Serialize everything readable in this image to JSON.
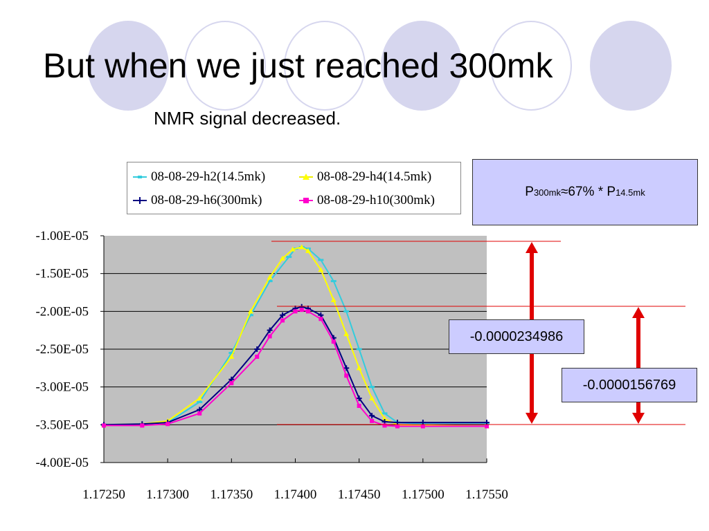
{
  "slide": {
    "title": "But when we just reached 300mk",
    "subtitle": "NMR signal decreased."
  },
  "annotations": {
    "formula": {
      "p": "P",
      "sub1": "300mk",
      "mid": "≈67% * P",
      "sub2": "14.5mk"
    },
    "delta_14_5mk": "-0.0000234986",
    "delta_300mk": "-0.0000156769"
  },
  "colors": {
    "decor_circle": "#d6d6ee",
    "plot_bg": "#c0c0c0",
    "box_fill": "#ccccff",
    "arrow": "#e00000",
    "ref_line": "#e00000"
  },
  "chart_data": {
    "type": "line",
    "title": "",
    "xlabel": "",
    "ylabel": "",
    "xlim": [
      1.1725,
      1.1755
    ],
    "ylim": [
      -4e-05,
      -1e-05
    ],
    "x_ticks": [
      "1.17250",
      "1.17300",
      "1.17350",
      "1.17400",
      "1.17450",
      "1.17500",
      "1.17550"
    ],
    "y_ticks": [
      "-1.00E-05",
      "-1.50E-05",
      "-2.00E-05",
      "-2.50E-05",
      "-3.00E-05",
      "-3.50E-05",
      "-4.00E-05"
    ],
    "grid": "horizontal",
    "legend_position": "top",
    "series": [
      {
        "name": "08-08-29-h2(14.5mk)",
        "color": "#33ccdd",
        "marker": "dash",
        "x": [
          1.1725,
          1.1728,
          1.173,
          1.17325,
          1.1735,
          1.17365,
          1.1738,
          1.17395,
          1.174,
          1.17405,
          1.1741,
          1.1742,
          1.1743,
          1.1744,
          1.1745,
          1.1746,
          1.1747,
          1.1748,
          1.175,
          1.1755
        ],
        "y": [
          -3.5e-05,
          -3.49e-05,
          -3.47e-05,
          -3.2e-05,
          -2.55e-05,
          -2.05e-05,
          -1.6e-05,
          -1.28e-05,
          -1.17e-05,
          -1.15e-05,
          -1.17e-05,
          -1.32e-05,
          -1.6e-05,
          -2e-05,
          -2.5e-05,
          -3e-05,
          -3.35e-05,
          -3.47e-05,
          -3.49e-05,
          -3.49e-05
        ]
      },
      {
        "name": "08-08-29-h4(14.5mk)",
        "color": "#ffff00",
        "marker": "triangle",
        "x": [
          1.1725,
          1.1728,
          1.173,
          1.17325,
          1.1735,
          1.17365,
          1.1738,
          1.1739,
          1.17398,
          1.17405,
          1.1741,
          1.1742,
          1.1743,
          1.1744,
          1.1745,
          1.1746,
          1.1747,
          1.1748,
          1.175,
          1.1755
        ],
        "y": [
          -3.5e-05,
          -3.49e-05,
          -3.45e-05,
          -3.15e-05,
          -2.6e-05,
          -2e-05,
          -1.55e-05,
          -1.3e-05,
          -1.18e-05,
          -1.15e-05,
          -1.2e-05,
          -1.45e-05,
          -1.85e-05,
          -2.3e-05,
          -2.75e-05,
          -3.15e-05,
          -3.42e-05,
          -3.5e-05,
          -3.51e-05,
          -3.52e-05
        ]
      },
      {
        "name": "08-08-29-h6(300mk)",
        "color": "#000080",
        "marker": "plus",
        "x": [
          1.1725,
          1.1728,
          1.173,
          1.17325,
          1.1735,
          1.1737,
          1.1738,
          1.1739,
          1.174,
          1.17405,
          1.1741,
          1.1742,
          1.1743,
          1.1744,
          1.1745,
          1.1746,
          1.1747,
          1.1748,
          1.175,
          1.1755
        ],
        "y": [
          -3.5e-05,
          -3.49e-05,
          -3.47e-05,
          -3.3e-05,
          -2.9e-05,
          -2.5e-05,
          -2.25e-05,
          -2.05e-05,
          -1.96e-05,
          -1.94e-05,
          -1.96e-05,
          -2.05e-05,
          -2.35e-05,
          -2.75e-05,
          -3.15e-05,
          -3.38e-05,
          -3.46e-05,
          -3.47e-05,
          -3.47e-05,
          -3.47e-05
        ]
      },
      {
        "name": "08-08-29-h10(300mk)",
        "color": "#ff00cc",
        "marker": "square",
        "x": [
          1.1725,
          1.1728,
          1.173,
          1.17325,
          1.1735,
          1.1737,
          1.1738,
          1.1739,
          1.174,
          1.17405,
          1.1741,
          1.1742,
          1.1743,
          1.1744,
          1.1745,
          1.1746,
          1.1747,
          1.1748,
          1.175,
          1.1755
        ],
        "y": [
          -3.51e-05,
          -3.51e-05,
          -3.49e-05,
          -3.35e-05,
          -2.95e-05,
          -2.6e-05,
          -2.33e-05,
          -2.12e-05,
          -2e-05,
          -1.98e-05,
          -2e-05,
          -2.1e-05,
          -2.4e-05,
          -2.85e-05,
          -3.25e-05,
          -3.45e-05,
          -3.51e-05,
          -3.52e-05,
          -3.52e-05,
          -3.52e-05
        ]
      }
    ]
  }
}
